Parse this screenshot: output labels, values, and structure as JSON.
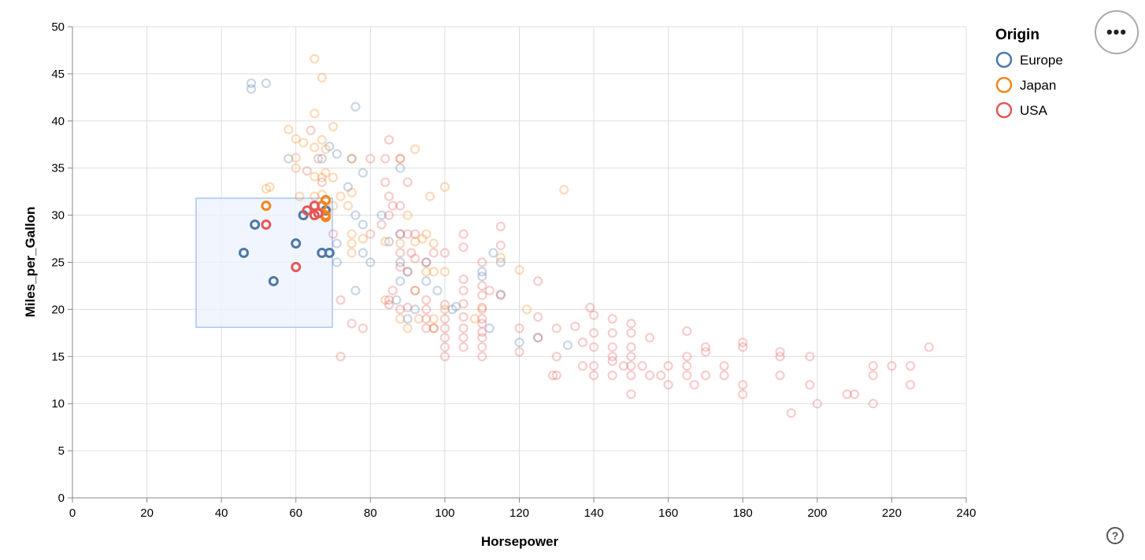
{
  "chart_data": {
    "type": "scatter",
    "xlabel": "Horsepower",
    "ylabel": "Miles_per_Gallon",
    "xlim": [
      0,
      240
    ],
    "ylim": [
      0,
      50
    ],
    "xticks": [
      0,
      20,
      40,
      60,
      80,
      100,
      120,
      140,
      160,
      180,
      200,
      220,
      240
    ],
    "yticks": [
      0,
      5,
      10,
      15,
      20,
      25,
      30,
      35,
      40,
      45,
      50
    ],
    "grid": true,
    "legend": {
      "title": "Origin",
      "placement": "right",
      "entries": [
        "Europe",
        "Japan",
        "USA"
      ]
    },
    "colors": {
      "Europe": "#4c78a8",
      "Japan": "#f58518",
      "USA": "#e45756"
    },
    "brush": {
      "x": [
        33.2,
        69.8
      ],
      "y": [
        18.1,
        31.8
      ]
    },
    "points": {
      "Europe": [
        [
          46,
          26
        ],
        [
          49,
          29
        ],
        [
          54,
          23
        ],
        [
          60,
          27
        ],
        [
          62,
          30
        ],
        [
          67,
          26
        ],
        [
          69,
          26
        ],
        [
          67,
          31
        ],
        [
          68,
          30.5
        ],
        [
          48,
          44
        ],
        [
          48,
          43.4
        ],
        [
          52,
          44
        ],
        [
          76,
          41.5
        ],
        [
          58,
          36
        ],
        [
          71,
          36.5
        ],
        [
          75,
          36
        ],
        [
          78,
          34.5
        ],
        [
          88,
          35
        ],
        [
          67,
          36
        ],
        [
          69,
          37.3
        ],
        [
          76,
          30
        ],
        [
          78,
          29
        ],
        [
          74,
          33
        ],
        [
          78,
          26
        ],
        [
          71,
          27
        ],
        [
          71,
          25
        ],
        [
          80,
          25
        ],
        [
          76,
          22
        ],
        [
          83,
          30
        ],
        [
          88,
          25
        ],
        [
          88,
          23
        ],
        [
          90,
          24
        ],
        [
          95,
          23
        ],
        [
          95,
          25
        ],
        [
          98,
          22
        ],
        [
          102,
          20
        ],
        [
          103,
          20.3
        ],
        [
          110,
          24
        ],
        [
          110,
          23.5
        ],
        [
          112,
          18
        ],
        [
          113,
          26
        ],
        [
          115,
          25
        ],
        [
          115,
          21.6
        ],
        [
          120,
          16.5
        ],
        [
          125,
          17
        ],
        [
          133,
          16.2
        ],
        [
          88,
          28
        ],
        [
          85,
          27.2
        ],
        [
          90,
          19
        ],
        [
          87,
          21
        ],
        [
          92,
          20
        ]
      ],
      "Japan": [
        [
          52,
          31
        ],
        [
          67,
          31
        ],
        [
          68,
          31.6
        ],
        [
          68,
          30
        ],
        [
          68,
          29.8
        ],
        [
          65,
          46.6
        ],
        [
          67,
          44.6
        ],
        [
          65,
          40.8
        ],
        [
          70,
          39.4
        ],
        [
          58,
          39.1
        ],
        [
          60,
          38.1
        ],
        [
          62,
          37.7
        ],
        [
          65,
          37.2
        ],
        [
          67,
          38
        ],
        [
          68,
          37
        ],
        [
          60,
          36.1
        ],
        [
          60,
          35
        ],
        [
          65,
          34.1
        ],
        [
          67,
          34
        ],
        [
          68,
          34.5
        ],
        [
          70,
          34
        ],
        [
          75,
          36
        ],
        [
          72,
          32
        ],
        [
          75,
          32.4
        ],
        [
          61,
          32
        ],
        [
          53,
          33
        ],
        [
          52,
          32.8
        ],
        [
          65,
          32
        ],
        [
          67,
          32.2
        ],
        [
          70,
          31
        ],
        [
          74,
          31
        ],
        [
          75,
          28
        ],
        [
          75,
          27
        ],
        [
          78,
          27.5
        ],
        [
          75,
          26
        ],
        [
          84,
          27.2
        ],
        [
          88,
          27
        ],
        [
          92,
          27.2
        ],
        [
          94,
          27.5
        ],
        [
          95,
          28
        ],
        [
          96,
          32
        ],
        [
          97,
          27
        ],
        [
          100,
          33
        ],
        [
          97,
          24
        ],
        [
          100,
          24
        ],
        [
          95,
          24
        ],
        [
          88,
          36
        ],
        [
          90,
          30
        ],
        [
          92,
          37
        ],
        [
          92,
          22
        ],
        [
          93,
          19
        ],
        [
          97,
          19
        ],
        [
          100,
          20
        ],
        [
          108,
          19
        ],
        [
          110,
          20
        ],
        [
          115,
          25.5
        ],
        [
          120,
          24.2
        ],
        [
          122,
          20
        ],
        [
          132,
          32.7
        ],
        [
          90,
          18
        ],
        [
          97,
          18
        ],
        [
          88,
          19
        ],
        [
          84,
          21
        ]
      ],
      "USA": [
        [
          52,
          29
        ],
        [
          60,
          24.5
        ],
        [
          63,
          30.5
        ],
        [
          65,
          30
        ],
        [
          65,
          31
        ],
        [
          66,
          30.2
        ],
        [
          72,
          15
        ],
        [
          72,
          21
        ],
        [
          70,
          28
        ],
        [
          80,
          36
        ],
        [
          85,
          38
        ],
        [
          84,
          36
        ],
        [
          88,
          36
        ],
        [
          90,
          33.5
        ],
        [
          85,
          32
        ],
        [
          84,
          33.5
        ],
        [
          80,
          28
        ],
        [
          83,
          29
        ],
        [
          85,
          30
        ],
        [
          86,
          31
        ],
        [
          88,
          31
        ],
        [
          88,
          28
        ],
        [
          90,
          28
        ],
        [
          91,
          26
        ],
        [
          92,
          25.4
        ],
        [
          88,
          26
        ],
        [
          86,
          22
        ],
        [
          85,
          21
        ],
        [
          85,
          20.5
        ],
        [
          88,
          20
        ],
        [
          90,
          20.2
        ],
        [
          92,
          22
        ],
        [
          95,
          21
        ],
        [
          95,
          20
        ],
        [
          95,
          19
        ],
        [
          95,
          18
        ],
        [
          97,
          18
        ],
        [
          100,
          20.5
        ],
        [
          100,
          19
        ],
        [
          100,
          18
        ],
        [
          100,
          17
        ],
        [
          100,
          16
        ],
        [
          100,
          15
        ],
        [
          105,
          28
        ],
        [
          105,
          26.6
        ],
        [
          105,
          23.2
        ],
        [
          105,
          22
        ],
        [
          105,
          20.6
        ],
        [
          105,
          19.2
        ],
        [
          105,
          18
        ],
        [
          105,
          16
        ],
        [
          110,
          25
        ],
        [
          110,
          22.5
        ],
        [
          110,
          21.5
        ],
        [
          110,
          20.2
        ],
        [
          110,
          19
        ],
        [
          110,
          18.5
        ],
        [
          110,
          17.6
        ],
        [
          110,
          17
        ],
        [
          110,
          16
        ],
        [
          110,
          15
        ],
        [
          112,
          22
        ],
        [
          115,
          28.8
        ],
        [
          115,
          26.8
        ],
        [
          115,
          21.5
        ],
        [
          120,
          18
        ],
        [
          120,
          15.5
        ],
        [
          125,
          23
        ],
        [
          125,
          19.2
        ],
        [
          129,
          13
        ],
        [
          130,
          13
        ],
        [
          130,
          15
        ],
        [
          130,
          18
        ],
        [
          135,
          18.2
        ],
        [
          137,
          14
        ],
        [
          139,
          20.2
        ],
        [
          140,
          19.4
        ],
        [
          140,
          17.5
        ],
        [
          140,
          16
        ],
        [
          140,
          14
        ],
        [
          140,
          13
        ],
        [
          145,
          19
        ],
        [
          145,
          17.5
        ],
        [
          145,
          15
        ],
        [
          145,
          14.5
        ],
        [
          145,
          13
        ],
        [
          148,
          14
        ],
        [
          150,
          18.5
        ],
        [
          150,
          17.5
        ],
        [
          150,
          16
        ],
        [
          150,
          15
        ],
        [
          150,
          14
        ],
        [
          150,
          13
        ],
        [
          150,
          11
        ],
        [
          153,
          14
        ],
        [
          155,
          17
        ],
        [
          155,
          13
        ],
        [
          158,
          13
        ],
        [
          160,
          14
        ],
        [
          160,
          12
        ],
        [
          165,
          17.7
        ],
        [
          165,
          15
        ],
        [
          165,
          14
        ],
        [
          165,
          13
        ],
        [
          167,
          12
        ],
        [
          170,
          16
        ],
        [
          170,
          15.5
        ],
        [
          170,
          13
        ],
        [
          175,
          14
        ],
        [
          175,
          13
        ],
        [
          180,
          16.5
        ],
        [
          180,
          16
        ],
        [
          180,
          12
        ],
        [
          180,
          11
        ],
        [
          190,
          15.5
        ],
        [
          190,
          15
        ],
        [
          190,
          13
        ],
        [
          193,
          9
        ],
        [
          198,
          15
        ],
        [
          198,
          12
        ],
        [
          200,
          10
        ],
        [
          208,
          11
        ],
        [
          210,
          11
        ],
        [
          215,
          14
        ],
        [
          215,
          13
        ],
        [
          215,
          10
        ],
        [
          220,
          14
        ],
        [
          225,
          14
        ],
        [
          225,
          12
        ],
        [
          230,
          16
        ],
        [
          63,
          34.7
        ],
        [
          64,
          39
        ],
        [
          66,
          36
        ],
        [
          67,
          33.5
        ],
        [
          78,
          18
        ],
        [
          90,
          24
        ],
        [
          100,
          26
        ],
        [
          97,
          26
        ],
        [
          92,
          28
        ],
        [
          88,
          24.5
        ],
        [
          95,
          25
        ],
        [
          75,
          18.5
        ],
        [
          105,
          17
        ],
        [
          125,
          17
        ],
        [
          145,
          16
        ],
        [
          137,
          16.5
        ]
      ]
    }
  },
  "ui": {
    "actions_label": "•••",
    "help_label": "?"
  }
}
